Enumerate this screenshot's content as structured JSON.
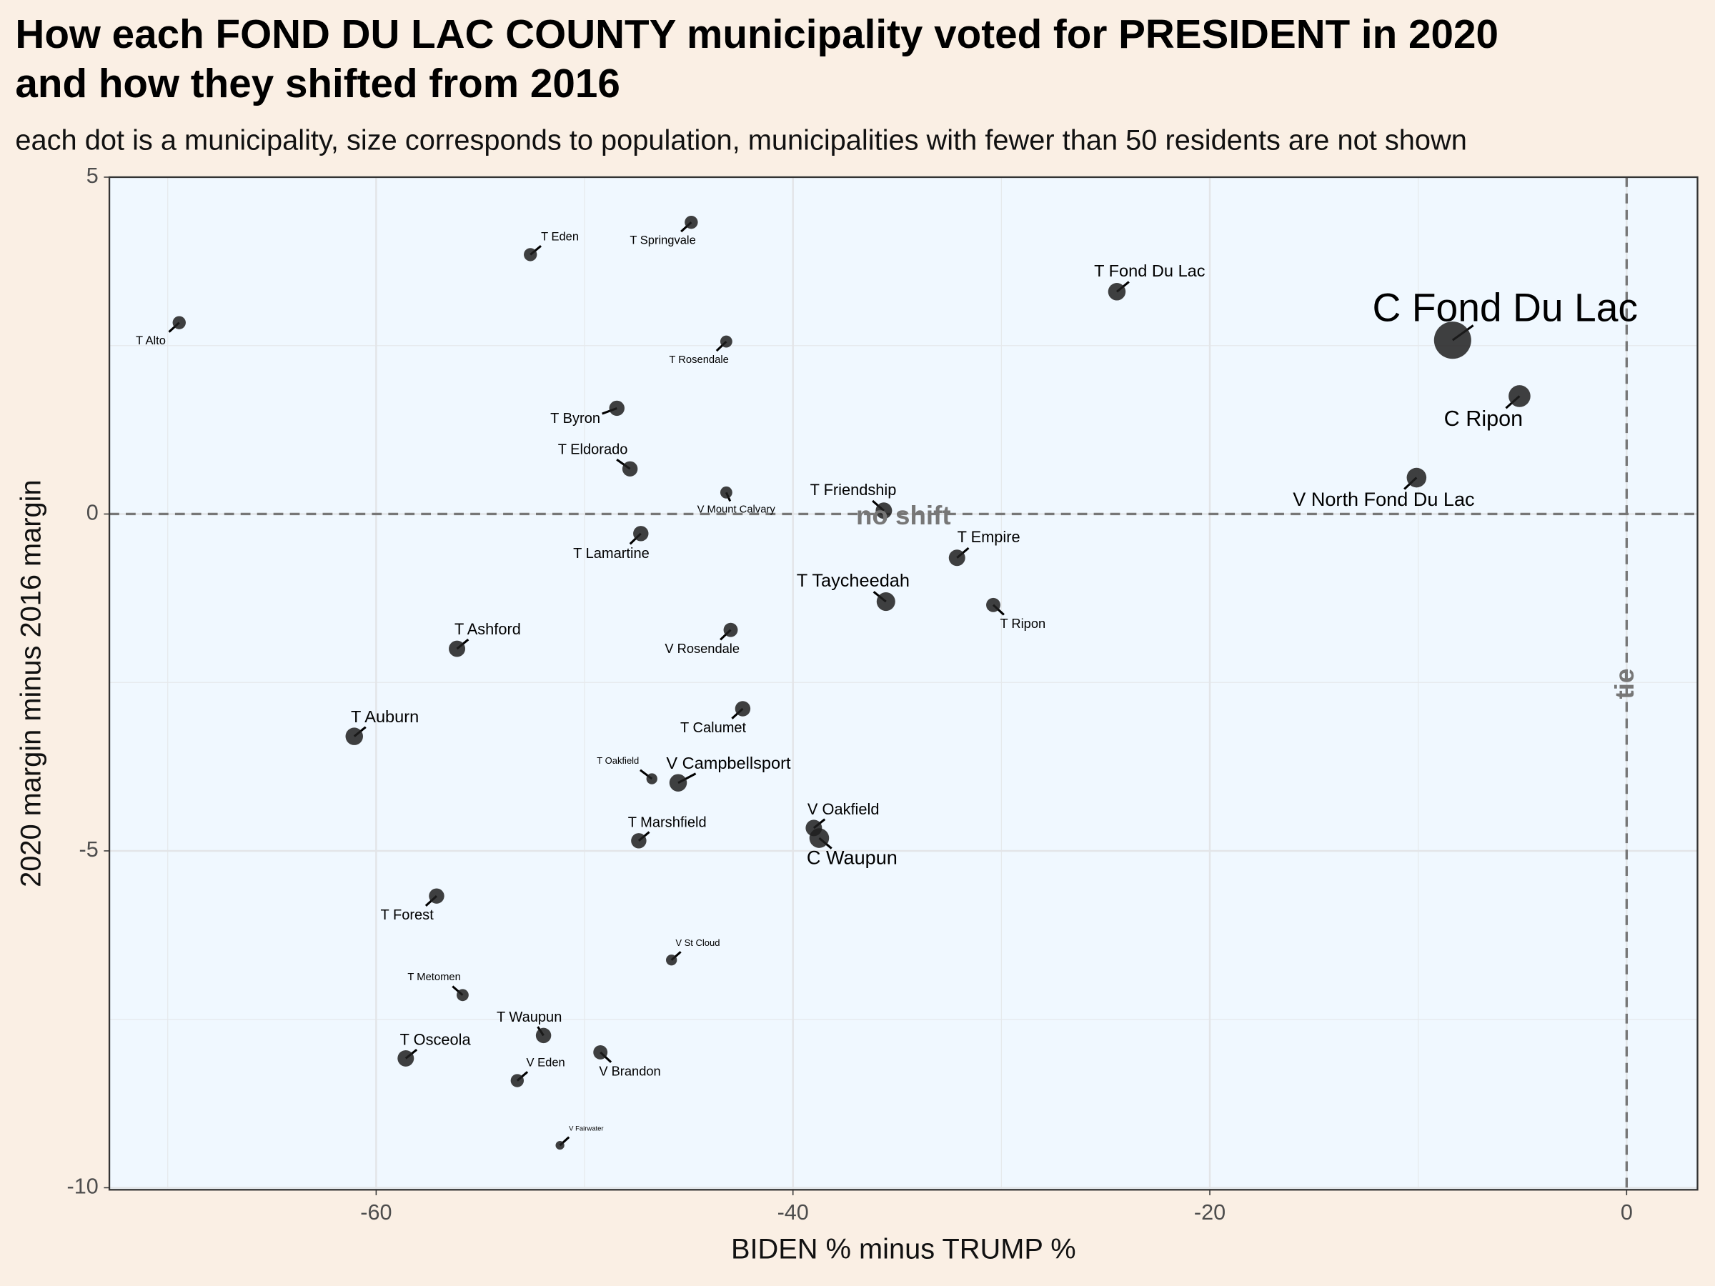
{
  "chart_data": {
    "type": "scatter",
    "title": [
      "How each FOND DU LAC COUNTY municipality voted for PRESIDENT in 2020",
      "and how they shifted from 2016"
    ],
    "subtitle": "each dot is a municipality, size corresponds to population, municipalities with fewer than 50 residents are not shown",
    "x_label": "BIDEN % minus TRUMP %",
    "y_label": "2020 margin minus 2016 margin",
    "xlim": [
      -72.8,
      3.4
    ],
    "ylim": [
      -10.03,
      5
    ],
    "xticks": [
      -60,
      -40,
      -20,
      0
    ],
    "yticks": [
      -10,
      -5,
      0,
      5
    ],
    "xminor": [
      -70,
      -50,
      -30,
      -10
    ],
    "yminor": [
      -7.5,
      -2.5,
      2.5
    ],
    "grid": true,
    "hline": 0,
    "vline": 0,
    "color": "#1e1e1e",
    "annotations": [
      {
        "text": "no shift",
        "x": -34.7,
        "y": -0.05
      },
      {
        "text": "tie",
        "x": 0,
        "y": -2.52
      }
    ],
    "points": [
      {
        "label": "T Alto",
        "x": -69.45,
        "y": 2.84,
        "size": 6
      },
      {
        "label": "T Eden",
        "x": -52.6,
        "y": 3.85,
        "size": 6
      },
      {
        "label": "T Springvale",
        "x": -44.88,
        "y": 4.33,
        "size": 6
      },
      {
        "label": "T Fond Du Lac",
        "x": -24.46,
        "y": 3.3,
        "size": 8
      },
      {
        "label": "C Fond Du Lac",
        "x": -8.35,
        "y": 2.58,
        "size": 17
      },
      {
        "label": "C Ripon",
        "x": -5.14,
        "y": 1.75,
        "size": 10
      },
      {
        "label": "T Rosendale",
        "x": -43.2,
        "y": 2.56,
        "size": 5.5
      },
      {
        "label": "T Byron",
        "x": -48.45,
        "y": 1.57,
        "size": 7
      },
      {
        "label": "T Eldorado",
        "x": -47.82,
        "y": 0.67,
        "size": 7
      },
      {
        "label": "V Mount Calvary",
        "x": -43.2,
        "y": 0.32,
        "size": 5.5
      },
      {
        "label": "T Friendship",
        "x": -35.64,
        "y": 0.05,
        "size": 7.5
      },
      {
        "label": "V North Fond Du Lac",
        "x": -10.08,
        "y": 0.54,
        "size": 9
      },
      {
        "label": "T Lamartine",
        "x": -47.3,
        "y": -0.29,
        "size": 7
      },
      {
        "label": "T Empire",
        "x": -32.13,
        "y": -0.65,
        "size": 7.5
      },
      {
        "label": "T Taycheedah",
        "x": -35.54,
        "y": -1.3,
        "size": 8.5
      },
      {
        "label": "T Ripon",
        "x": -30.39,
        "y": -1.35,
        "size": 6.5
      },
      {
        "label": "V Rosendale",
        "x": -42.99,
        "y": -1.72,
        "size": 6.5
      },
      {
        "label": "T Ashford",
        "x": -56.12,
        "y": -2.0,
        "size": 7.5
      },
      {
        "label": "T Calumet",
        "x": -42.41,
        "y": -2.89,
        "size": 7
      },
      {
        "label": "T Auburn",
        "x": -61.05,
        "y": -3.3,
        "size": 8
      },
      {
        "label": "T Oakfield",
        "x": -46.77,
        "y": -3.93,
        "size": 5
      },
      {
        "label": "V Campbellsport",
        "x": -45.51,
        "y": -3.99,
        "size": 8
      },
      {
        "label": "V Oakfield",
        "x": -39.0,
        "y": -4.66,
        "size": 7.5
      },
      {
        "label": "C Waupun",
        "x": -38.74,
        "y": -4.81,
        "size": 9
      },
      {
        "label": "T Marshfield",
        "x": -47.4,
        "y": -4.85,
        "size": 7
      },
      {
        "label": "T Forest",
        "x": -57.1,
        "y": -5.67,
        "size": 7
      },
      {
        "label": "V St Cloud",
        "x": -45.83,
        "y": -6.62,
        "size": 5
      },
      {
        "label": "T Metomen",
        "x": -55.85,
        "y": -7.14,
        "size": 5.5
      },
      {
        "label": "T Waupun",
        "x": -51.97,
        "y": -7.74,
        "size": 7
      },
      {
        "label": "T Osceola",
        "x": -58.58,
        "y": -8.08,
        "size": 7.5
      },
      {
        "label": "V Brandon",
        "x": -49.24,
        "y": -7.99,
        "size": 6.5
      },
      {
        "label": "V Eden",
        "x": -53.23,
        "y": -8.41,
        "size": 6
      },
      {
        "label": "V Fairwater",
        "x": -51.18,
        "y": -9.37,
        "size": 4
      }
    ]
  }
}
